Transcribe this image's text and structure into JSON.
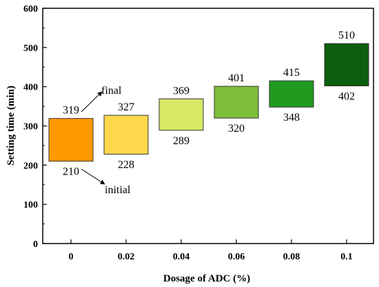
{
  "chart_data": {
    "type": "bar",
    "subtype": "floating-range",
    "categories": [
      "0",
      "0.02",
      "0.04",
      "0.06",
      "0.08",
      "0.1"
    ],
    "series": [
      {
        "name": "initial",
        "values": [
          210,
          228,
          289,
          320,
          348,
          402
        ]
      },
      {
        "name": "final",
        "values": [
          319,
          327,
          369,
          401,
          415,
          510
        ]
      }
    ],
    "bar_colors": [
      "#ff9900",
      "#ffd84d",
      "#d9e866",
      "#7dbf3a",
      "#1f9a1f",
      "#0b5e0b"
    ],
    "xlabel": "Dosage of ADC (%)",
    "ylabel": "Setting time (min)",
    "ylim": [
      0,
      600
    ],
    "yticks": [
      0,
      100,
      200,
      300,
      400,
      500,
      600
    ],
    "grid": false,
    "legend": "none",
    "annotations": [
      {
        "text": "final",
        "points_to": "0:final"
      },
      {
        "text": "initial",
        "points_to": "0:initial"
      }
    ]
  }
}
